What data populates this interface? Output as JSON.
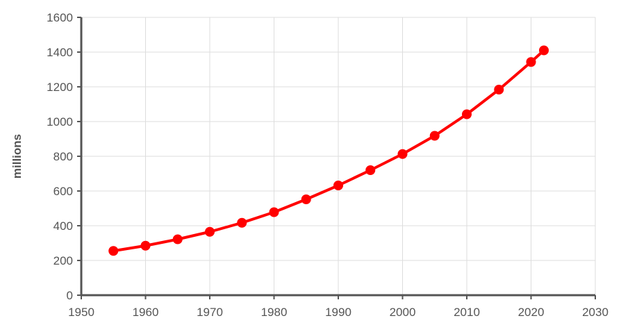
{
  "chart_data": {
    "type": "line",
    "title": "",
    "xlabel": "",
    "ylabel": "millions",
    "xlim": [
      1950,
      2030
    ],
    "ylim": [
      0,
      1600
    ],
    "x_ticks": [
      1950,
      1960,
      1970,
      1980,
      1990,
      2000,
      2010,
      2020,
      2030
    ],
    "y_ticks": [
      0,
      200,
      400,
      600,
      800,
      1000,
      1200,
      1400,
      1600
    ],
    "grid": true,
    "legend": "none",
    "series": [
      {
        "color": "#ff0000",
        "x": [
          1955,
          1960,
          1965,
          1970,
          1975,
          1980,
          1985,
          1990,
          1995,
          2000,
          2005,
          2010,
          2015,
          2020,
          2022
        ],
        "y": [
          255,
          285,
          322,
          365,
          417,
          478,
          552,
          632,
          720,
          813,
          918,
          1042,
          1184,
          1343,
          1410
        ]
      }
    ]
  }
}
